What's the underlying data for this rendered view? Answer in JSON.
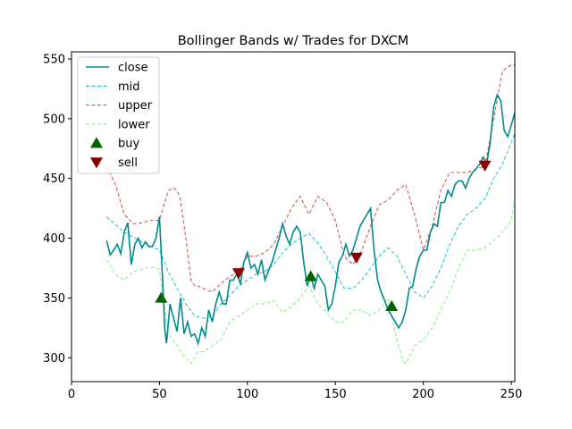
{
  "chart_data": {
    "type": "line",
    "title": "Bollinger Bands w/ Trades for DXCM",
    "xlabel": "",
    "ylabel": "",
    "xlim": [
      0,
      252
    ],
    "ylim": [
      280,
      556
    ],
    "xticks": [
      0,
      50,
      100,
      150,
      200,
      250
    ],
    "yticks": [
      300,
      350,
      400,
      450,
      500,
      550
    ],
    "grid": false,
    "legend_position": "top-left",
    "series": [
      {
        "name": "close",
        "style": "solid",
        "color": "#008b8b",
        "x": [
          20,
          22,
          24,
          26,
          28,
          30,
          32,
          34,
          36,
          38,
          40,
          42,
          44,
          46,
          48,
          50,
          52,
          53,
          54,
          56,
          58,
          60,
          62,
          64,
          66,
          68,
          70,
          72,
          74,
          76,
          78,
          80,
          82,
          84,
          86,
          88,
          90,
          92,
          94,
          96,
          98,
          100,
          102,
          104,
          106,
          108,
          110,
          112,
          114,
          116,
          118,
          120,
          122,
          124,
          126,
          128,
          130,
          132,
          134,
          136,
          138,
          140,
          142,
          144,
          146,
          148,
          150,
          152,
          154,
          156,
          158,
          160,
          162,
          164,
          166,
          168,
          170,
          172,
          174,
          176,
          178,
          180,
          182,
          184,
          186,
          188,
          190,
          192,
          194,
          196,
          198,
          200,
          202,
          204,
          206,
          208,
          210,
          212,
          214,
          216,
          218,
          220,
          222,
          224,
          226,
          228,
          230,
          232,
          234,
          236,
          238,
          240,
          242,
          244,
          246,
          248,
          250,
          252
        ],
        "y": [
          398,
          386,
          390,
          395,
          387,
          405,
          413,
          378,
          395,
          400,
          392,
          397,
          393,
          393,
          400,
          418,
          360,
          325,
          312,
          345,
          333,
          322,
          350,
          320,
          330,
          318,
          320,
          312,
          325,
          318,
          340,
          330,
          345,
          355,
          345,
          345,
          365,
          365,
          370,
          362,
          380,
          388,
          375,
          378,
          370,
          382,
          365,
          373,
          380,
          390,
          400,
          412,
          402,
          395,
          405,
          410,
          405,
          380,
          360,
          368,
          358,
          370,
          365,
          360,
          340,
          345,
          360,
          380,
          385,
          395,
          385,
          390,
          400,
          410,
          415,
          420,
          425,
          390,
          365,
          355,
          348,
          340,
          335,
          330,
          325,
          330,
          340,
          358,
          360,
          375,
          385,
          390,
          390,
          405,
          412,
          410,
          430,
          430,
          440,
          435,
          445,
          448,
          448,
          442,
          450,
          455,
          458,
          462,
          468,
          462,
          480,
          510,
          520,
          515,
          490,
          485,
          495,
          505
        ]
      },
      {
        "name": "mid",
        "style": "dashed",
        "color": "#00bfbf",
        "x": [
          20,
          30,
          40,
          50,
          55,
          60,
          65,
          70,
          75,
          80,
          85,
          90,
          95,
          100,
          105,
          110,
          115,
          120,
          125,
          130,
          135,
          140,
          145,
          150,
          155,
          160,
          165,
          170,
          175,
          180,
          185,
          190,
          195,
          200,
          205,
          210,
          215,
          220,
          225,
          230,
          235,
          240,
          245,
          250,
          252
        ],
        "y": [
          418,
          405,
          397,
          390,
          372,
          358,
          345,
          335,
          333,
          335,
          345,
          352,
          360,
          365,
          370,
          372,
          378,
          388,
          395,
          400,
          404,
          396,
          385,
          372,
          358,
          358,
          365,
          375,
          385,
          392,
          385,
          370,
          355,
          350,
          360,
          375,
          395,
          410,
          420,
          425,
          433,
          450,
          462,
          480,
          488
        ]
      },
      {
        "name": "upper",
        "style": "dashed",
        "color": "#cd5c5c",
        "x": [
          20,
          25,
          30,
          35,
          40,
          45,
          50,
          55,
          58,
          60,
          62,
          65,
          68,
          70,
          72,
          75,
          80,
          85,
          90,
          95,
          100,
          105,
          110,
          115,
          120,
          125,
          130,
          135,
          140,
          145,
          150,
          155,
          160,
          165,
          170,
          175,
          180,
          185,
          190,
          195,
          200,
          205,
          210,
          215,
          220,
          225,
          230,
          235,
          240,
          245,
          250,
          252
        ],
        "y": [
          460,
          445,
          420,
          412,
          413,
          415,
          415,
          440,
          442,
          440,
          432,
          400,
          365,
          360,
          360,
          358,
          355,
          362,
          368,
          372,
          385,
          385,
          388,
          395,
          410,
          425,
          435,
          420,
          435,
          430,
          415,
          385,
          378,
          390,
          410,
          428,
          432,
          440,
          445,
          420,
          390,
          410,
          440,
          455,
          455,
          455,
          458,
          460,
          500,
          540,
          545,
          545
        ]
      },
      {
        "name": "lower",
        "style": "dashed",
        "color": "#90ee90",
        "x": [
          20,
          25,
          30,
          35,
          40,
          45,
          50,
          55,
          60,
          62,
          65,
          68,
          70,
          72,
          75,
          80,
          85,
          90,
          95,
          100,
          105,
          110,
          115,
          120,
          125,
          130,
          135,
          140,
          145,
          150,
          155,
          160,
          165,
          170,
          175,
          180,
          185,
          188,
          190,
          192,
          195,
          200,
          205,
          210,
          215,
          220,
          225,
          230,
          235,
          240,
          245,
          250,
          252
        ],
        "y": [
          382,
          370,
          365,
          372,
          374,
          376,
          374,
          320,
          310,
          305,
          300,
          295,
          300,
          305,
          305,
          310,
          315,
          330,
          335,
          340,
          345,
          345,
          348,
          338,
          343,
          350,
          360,
          345,
          338,
          330,
          330,
          340,
          340,
          335,
          340,
          350,
          315,
          300,
          295,
          300,
          310,
          315,
          325,
          340,
          355,
          375,
          390,
          390,
          392,
          398,
          405,
          415,
          432
        ]
      }
    ],
    "trades": [
      {
        "name": "buy",
        "marker": "triangle-up",
        "color": "#006400",
        "x": [
          51,
          136,
          182
        ],
        "y": [
          350,
          368,
          343
        ]
      },
      {
        "name": "sell",
        "marker": "triangle-down",
        "color": "#8b0000",
        "x": [
          95,
          162,
          235
        ],
        "y": [
          371,
          384,
          461
        ]
      }
    ]
  }
}
